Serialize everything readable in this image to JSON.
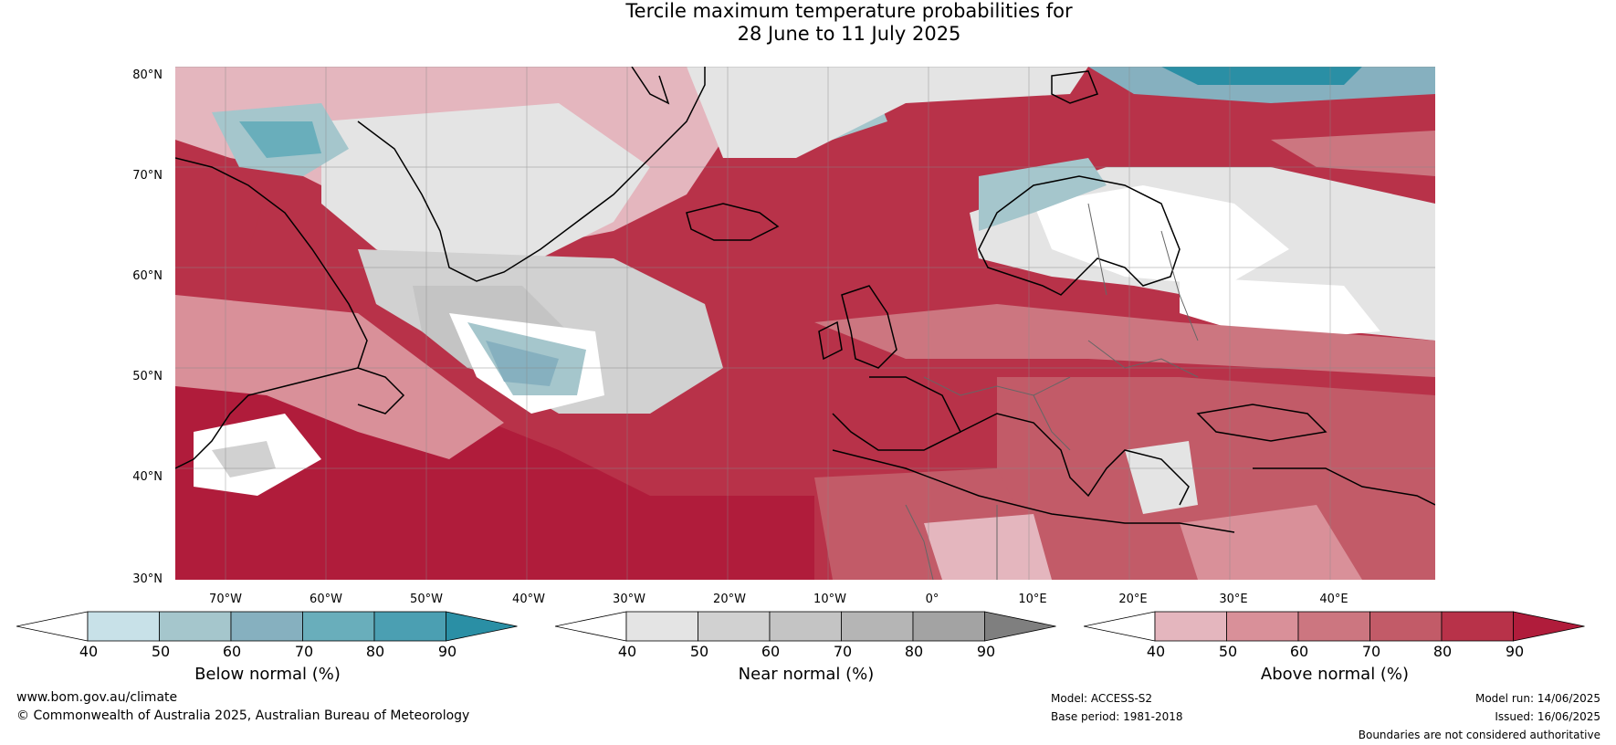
{
  "title": {
    "line1": "Tercile maximum temperature probabilities for",
    "line2": "28 June to 11 July 2025"
  },
  "map": {
    "lat_labels": [
      "80°N",
      "70°N",
      "60°N",
      "50°N",
      "40°N",
      "30°N"
    ],
    "lon_labels": [
      "70°W",
      "60°W",
      "50°W",
      "40°W",
      "30°W",
      "20°W",
      "10°W",
      "0°",
      "10°E",
      "20°E",
      "30°E",
      "40°E"
    ]
  },
  "colorbars": [
    {
      "id": "below",
      "label": "Below normal (%)",
      "ticks": [
        "40",
        "50",
        "60",
        "70",
        "80",
        "90"
      ],
      "colors": [
        "#ffffff",
        "#c8e1e8",
        "#a5c6cc",
        "#86b0bf",
        "#69aebb",
        "#4b9fb2",
        "#2a8fa5"
      ]
    },
    {
      "id": "near",
      "label": "Near normal (%)",
      "ticks": [
        "40",
        "50",
        "60",
        "70",
        "80",
        "90"
      ],
      "colors": [
        "#ffffff",
        "#e4e4e4",
        "#d1d1d1",
        "#c4c4c4",
        "#b5b5b5",
        "#a3a3a3",
        "#7f7f7f"
      ]
    },
    {
      "id": "above",
      "label": "Above normal (%)",
      "ticks": [
        "40",
        "50",
        "60",
        "70",
        "80",
        "90"
      ],
      "colors": [
        "#ffffff",
        "#e4b6be",
        "#d99099",
        "#cc7680",
        "#c25b68",
        "#b83249",
        "#b01c3b"
      ]
    }
  ],
  "footer": {
    "website": "www.bom.gov.au/climate",
    "copyright": "© Commonwealth of Australia 2025, Australian Bureau of Meteorology",
    "model": "Model: ACCESS-S2",
    "base_period": "Base period: 1981-2018",
    "model_run": "Model run: 14/06/2025",
    "issued": "Issued: 16/06/2025",
    "disclaimer": "Boundaries are not considered authoritative"
  }
}
